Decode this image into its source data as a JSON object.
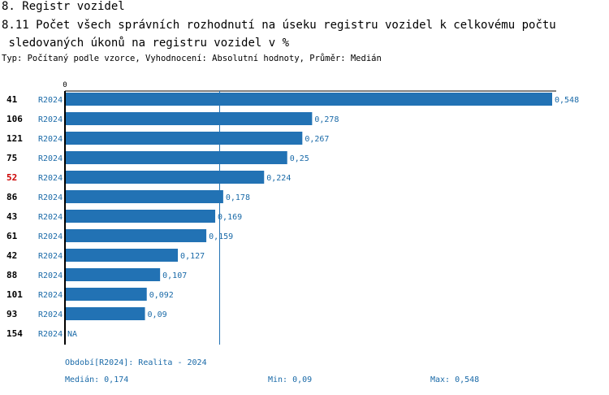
{
  "header": {
    "section_title": "8. Registr vozidel",
    "chart_title": "8.11 Počet všech správních rozhodnutí na úseku registru vozidel k celkovému počtu\n sledovaných úkonů na registru vozidel v %",
    "subtitle": "Typ: Počítaný podle vzorce, Vyhodnocení: Absolutní hodnoty, Průměr: Medián"
  },
  "colors": {
    "bar": "#2272b4",
    "label": "#1a6aa8",
    "highlight": "#cc0000",
    "axis": "#000000",
    "median_line": "#2272b4"
  },
  "chart_data": {
    "type": "bar",
    "orientation": "horizontal",
    "axis_zero_label": "0",
    "xlim": [
      0,
      0.548
    ],
    "median": 0.174,
    "rows": [
      {
        "id": "41",
        "period": "R2024",
        "value": 0.548,
        "label": "0,548",
        "highlight": false
      },
      {
        "id": "106",
        "period": "R2024",
        "value": 0.278,
        "label": "0,278",
        "highlight": false
      },
      {
        "id": "121",
        "period": "R2024",
        "value": 0.267,
        "label": "0,267",
        "highlight": false
      },
      {
        "id": "75",
        "period": "R2024",
        "value": 0.25,
        "label": "0,25",
        "highlight": false
      },
      {
        "id": "52",
        "period": "R2024",
        "value": 0.224,
        "label": "0,224",
        "highlight": true
      },
      {
        "id": "86",
        "period": "R2024",
        "value": 0.178,
        "label": "0,178",
        "highlight": false
      },
      {
        "id": "43",
        "period": "R2024",
        "value": 0.169,
        "label": "0,169",
        "highlight": false
      },
      {
        "id": "61",
        "period": "R2024",
        "value": 0.159,
        "label": "0,159",
        "highlight": false
      },
      {
        "id": "42",
        "period": "R2024",
        "value": 0.127,
        "label": "0,127",
        "highlight": false
      },
      {
        "id": "88",
        "period": "R2024",
        "value": 0.107,
        "label": "0,107",
        "highlight": false
      },
      {
        "id": "101",
        "period": "R2024",
        "value": 0.092,
        "label": "0,092",
        "highlight": false
      },
      {
        "id": "93",
        "period": "R2024",
        "value": 0.09,
        "label": "0,09",
        "highlight": false
      },
      {
        "id": "154",
        "period": "R2024",
        "value": null,
        "label": "NA",
        "highlight": false
      }
    ]
  },
  "footer": {
    "period_note": "Období[R2024]: Realita - 2024",
    "median_text": "Medián: 0,174",
    "min_text": "Min: 0,09",
    "max_text": "Max: 0,548"
  }
}
